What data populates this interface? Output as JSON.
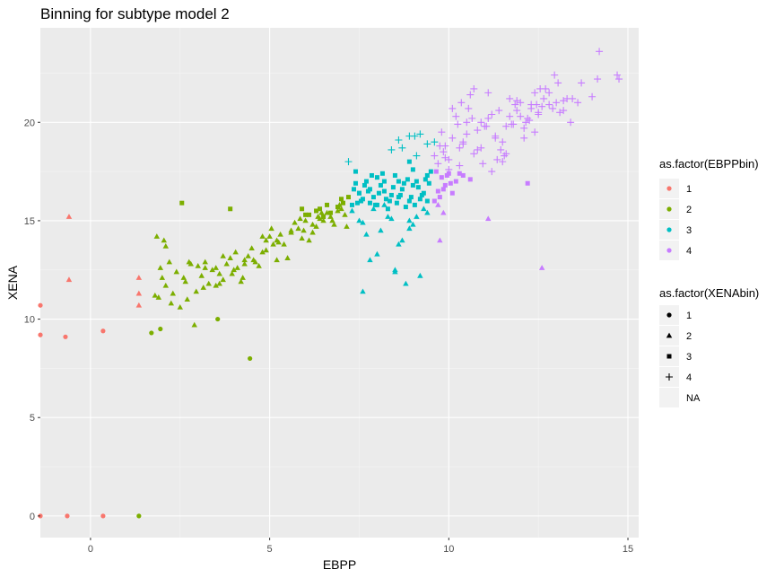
{
  "chart_data": {
    "type": "scatter",
    "title": "Binning for subtype model 2",
    "xlabel": "EBPP",
    "ylabel": "XENA",
    "xlim": [
      -1.4,
      15.3
    ],
    "ylim": [
      -1.1,
      24.8
    ],
    "x_ticks": [
      0,
      5,
      10,
      15
    ],
    "y_ticks": [
      0,
      5,
      10,
      15,
      20
    ],
    "grid": true,
    "legend_position": "right",
    "color_legend": {
      "title": "as.factor(EBPPbin)",
      "entries": [
        {
          "label": "1",
          "color": "#F8766D"
        },
        {
          "label": "2",
          "color": "#7CAE00"
        },
        {
          "label": "3",
          "color": "#00BFC4"
        },
        {
          "label": "4",
          "color": "#C77CFF"
        }
      ]
    },
    "shape_legend": {
      "title": "as.factor(XENAbin)",
      "entries": [
        {
          "label": "1",
          "shape": "circle"
        },
        {
          "label": "2",
          "shape": "triangle"
        },
        {
          "label": "3",
          "shape": "square"
        },
        {
          "label": "4",
          "shape": "plus"
        },
        {
          "label": "NA",
          "shape": "none"
        }
      ]
    },
    "series": [
      {
        "ebpp_bin": "1",
        "xena_bin": "1",
        "x": [
          -1.4,
          -1.4,
          -0.7,
          0.35,
          -1.4,
          -0.65,
          0.35
        ],
        "y": [
          10.7,
          9.2,
          9.1,
          9.4,
          0.0,
          0.0,
          0.0
        ]
      },
      {
        "ebpp_bin": "1",
        "xena_bin": "2",
        "x": [
          -0.6,
          -0.6,
          1.35,
          1.35,
          1.35
        ],
        "y": [
          15.2,
          12.0,
          12.1,
          11.3,
          10.7
        ]
      },
      {
        "ebpp_bin": "2",
        "xena_bin": "1",
        "x": [
          1.35,
          1.7,
          1.95,
          3.55,
          4.45
        ],
        "y": [
          0.0,
          9.3,
          9.5,
          10.0,
          8.0
        ]
      },
      {
        "ebpp_bin": "2",
        "xena_bin": "2",
        "x": [
          1.85,
          2.0,
          2.3,
          2.5,
          2.65,
          2.9,
          3.0,
          3.2,
          3.4,
          3.7,
          3.9,
          4.1,
          4.3,
          4.5,
          4.8,
          5.0,
          5.2,
          5.4,
          5.6,
          5.8,
          6.0,
          6.2,
          6.4,
          6.6,
          6.8,
          7.0,
          2.1,
          2.4,
          2.7,
          3.1,
          3.5,
          3.8,
          4.2,
          4.6,
          5.1,
          5.5,
          5.9,
          6.3,
          6.7,
          7.1,
          1.9,
          2.2,
          2.6,
          2.95,
          3.3,
          3.6,
          4.0,
          4.4,
          4.7,
          5.3,
          5.7,
          6.1,
          6.5,
          6.9,
          2.1,
          2.8,
          3.2,
          4.9,
          6.2,
          1.8,
          2.25,
          2.75,
          3.15,
          3.5,
          3.95,
          4.25,
          4.55,
          4.9,
          5.25,
          5.6,
          5.95,
          6.35,
          6.75,
          7.15,
          1.95,
          2.05,
          3.6,
          4.05,
          5.05,
          5.85,
          6.45,
          6.95,
          3.7,
          4.3,
          4.8,
          5.2
        ],
        "y": [
          14.2,
          12.1,
          11.3,
          10.6,
          11.9,
          9.7,
          12.7,
          12.9,
          12.5,
          12.0,
          13.1,
          12.6,
          13.0,
          13.6,
          13.4,
          14.2,
          14.0,
          13.8,
          14.5,
          14.6,
          15.0,
          14.4,
          15.1,
          15.4,
          14.8,
          15.6,
          11.7,
          12.4,
          11.0,
          12.2,
          11.7,
          12.8,
          11.9,
          12.9,
          13.8,
          13.1,
          14.1,
          14.7,
          15.2,
          15.3,
          11.1,
          12.9,
          12.1,
          11.4,
          11.8,
          12.3,
          12.5,
          13.2,
          12.7,
          14.3,
          14.9,
          14.0,
          15.0,
          15.5,
          13.7,
          12.8,
          12.6,
          13.5,
          14.8,
          11.2,
          10.8,
          12.9,
          11.6,
          12.6,
          12.3,
          12.1,
          13.0,
          14.0,
          13.9,
          14.4,
          14.5,
          15.2,
          15.0,
          14.7,
          12.6,
          14.0,
          11.8,
          13.4,
          14.6,
          15.1,
          15.4,
          15.8,
          13.2,
          12.8,
          14.2,
          13.0
        ]
      },
      {
        "ebpp_bin": "2",
        "xena_bin": "3",
        "x": [
          2.55,
          3.9,
          5.9,
          6.1,
          6.3,
          6.5,
          6.7,
          6.9,
          7.05,
          7.2,
          6.0,
          6.6,
          7.0,
          6.4
        ],
        "y": [
          15.9,
          15.6,
          15.6,
          15.3,
          15.5,
          15.2,
          15.4,
          15.7,
          15.9,
          16.2,
          15.3,
          15.8,
          16.1,
          15.6
        ]
      },
      {
        "ebpp_bin": "3",
        "xena_bin": "2",
        "x": [
          7.3,
          7.5,
          7.6,
          7.8,
          8.0,
          8.2,
          8.4,
          8.5,
          8.7,
          8.9,
          9.0,
          9.2,
          9.4,
          7.6,
          7.9,
          8.3,
          8.6,
          8.8,
          9.1,
          8.5,
          8.9,
          7.7,
          9.3,
          8.1
        ],
        "y": [
          15.5,
          15.0,
          11.4,
          13.0,
          13.3,
          15.8,
          15.1,
          12.5,
          14.0,
          14.6,
          14.8,
          12.2,
          15.4,
          14.9,
          15.6,
          15.2,
          13.8,
          11.8,
          15.2,
          12.4,
          15.0,
          14.3,
          15.6,
          14.5
        ]
      },
      {
        "ebpp_bin": "3",
        "xena_bin": "3",
        "x": [
          7.3,
          7.5,
          7.7,
          7.9,
          8.1,
          8.3,
          8.5,
          8.7,
          8.9,
          9.1,
          9.3,
          9.5,
          7.4,
          7.6,
          7.8,
          8.0,
          8.2,
          8.4,
          8.6,
          8.8,
          9.0,
          9.2,
          9.4,
          7.35,
          7.55,
          7.75,
          7.95,
          8.15,
          8.35,
          8.55,
          8.75,
          8.95,
          9.15,
          9.35,
          7.45,
          7.65,
          7.85,
          8.05,
          8.25,
          8.45,
          8.65,
          8.85,
          9.05,
          9.25,
          9.45,
          7.4,
          7.8,
          8.2,
          8.6,
          9.0,
          9.4,
          8.9,
          7.5,
          8.0
        ],
        "y": [
          15.8,
          16.4,
          17.0,
          16.2,
          16.8,
          15.6,
          17.3,
          16.6,
          16.0,
          17.0,
          16.4,
          17.5,
          16.9,
          16.1,
          15.9,
          17.2,
          16.5,
          16.3,
          17.0,
          15.7,
          16.8,
          16.1,
          17.3,
          16.6,
          16.0,
          16.5,
          15.8,
          17.4,
          16.0,
          15.9,
          16.9,
          16.2,
          16.7,
          17.1,
          15.9,
          16.8,
          17.3,
          16.4,
          16.1,
          16.7,
          16.3,
          17.1,
          15.8,
          16.3,
          16.9,
          17.5,
          16.6,
          17.0,
          16.2,
          17.6,
          16.0,
          18.0,
          16.4,
          15.8
        ]
      },
      {
        "ebpp_bin": "3",
        "xena_bin": "4",
        "x": [
          7.2,
          8.4,
          8.6,
          8.9,
          9.05,
          9.2,
          9.4,
          9.6,
          9.1,
          8.7
        ],
        "y": [
          18.0,
          18.6,
          19.1,
          19.3,
          19.3,
          19.4,
          18.9,
          19.0,
          18.3,
          18.7
        ]
      },
      {
        "ebpp_bin": "4",
        "xena_bin": "2",
        "x": [
          9.75,
          9.85,
          11.1,
          12.6,
          9.7
        ],
        "y": [
          14.0,
          15.4,
          15.1,
          12.6,
          15.8
        ]
      },
      {
        "ebpp_bin": "4",
        "xena_bin": "3",
        "x": [
          9.6,
          9.7,
          9.8,
          9.9,
          10.0,
          10.1,
          10.2,
          10.4,
          10.6,
          12.2,
          9.65,
          9.85,
          10.05,
          10.3,
          9.75,
          9.95
        ],
        "y": [
          16.0,
          16.5,
          17.2,
          16.8,
          17.4,
          16.4,
          17.0,
          17.3,
          17.1,
          16.9,
          17.5,
          16.6,
          16.9,
          17.4,
          16.2,
          17.3
        ]
      },
      {
        "ebpp_bin": "4",
        "xena_bin": "4",
        "x": [
          9.6,
          9.8,
          10.0,
          10.2,
          10.4,
          10.6,
          10.8,
          11.0,
          11.2,
          11.4,
          11.6,
          11.8,
          12.0,
          12.2,
          12.4,
          12.6,
          12.8,
          13.0,
          13.2,
          13.4,
          13.7,
          14.0,
          14.2,
          14.7,
          9.7,
          9.9,
          10.1,
          10.3,
          10.5,
          10.7,
          10.9,
          11.1,
          11.3,
          11.5,
          11.7,
          11.9,
          12.1,
          12.3,
          12.5,
          12.7,
          12.9,
          13.1,
          13.3,
          9.9,
          10.1,
          10.3,
          10.5,
          10.7,
          10.9,
          11.1,
          11.3,
          11.5,
          11.7,
          11.9,
          12.1,
          12.3,
          12.5,
          10.0,
          10.4,
          10.8,
          11.2,
          11.6,
          12.0,
          12.4,
          12.8,
          13.2,
          13.6,
          14.15,
          14.75,
          9.85,
          10.25,
          10.65,
          11.05,
          11.45,
          11.85,
          12.25,
          12.65,
          13.05,
          13.45,
          10.55,
          11.35,
          12.15,
          12.95,
          10.35,
          11.75,
          9.75,
          10.95,
          11.55,
          12.45,
          12.55
        ],
        "y": [
          18.3,
          19.5,
          18.1,
          20.3,
          19.0,
          21.4,
          18.6,
          19.8,
          17.5,
          20.6,
          18.4,
          19.9,
          21.0,
          20.2,
          19.5,
          20.8,
          21.5,
          21.0,
          20.6,
          20.0,
          22.0,
          21.3,
          23.6,
          22.4,
          17.9,
          18.8,
          20.7,
          18.7,
          19.4,
          18.4,
          20.0,
          21.5,
          19.2,
          19.0,
          20.3,
          21.1,
          19.7,
          20.9,
          20.4,
          21.7,
          20.7,
          20.5,
          21.2,
          18.2,
          19.2,
          17.8,
          20.0,
          21.7,
          18.7,
          20.2,
          19.3,
          18.0,
          21.2,
          20.6,
          19.2,
          20.7,
          20.5,
          17.6,
          18.9,
          19.6,
          20.4,
          19.8,
          20.3,
          21.5,
          20.9,
          21.1,
          21.0,
          22.2,
          22.2,
          18.5,
          19.9,
          20.2,
          19.8,
          18.6,
          20.9,
          20.1,
          21.2,
          22.0,
          21.2,
          20.7,
          18.1,
          20.0,
          22.4,
          21.0,
          19.9,
          18.8,
          17.9,
          18.3,
          20.9,
          21.7
        ]
      }
    ]
  }
}
